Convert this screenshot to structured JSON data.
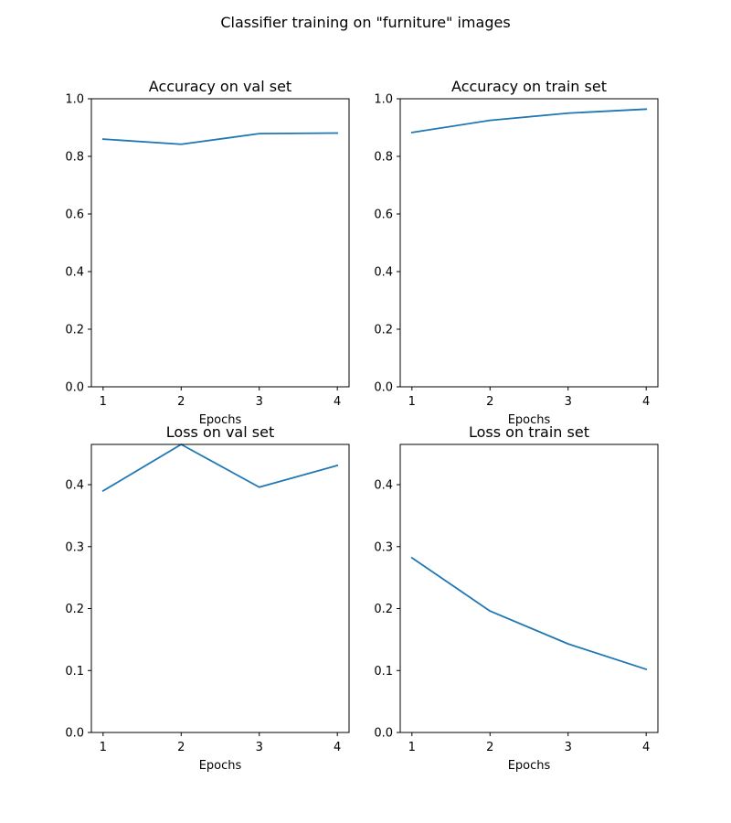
{
  "figure": {
    "title": "Classifier training on \"furniture\" images",
    "line_color": "#1f77b4"
  },
  "chart_data": [
    {
      "type": "line",
      "title": "Accuracy on val set",
      "xlabel": "Epochs",
      "ylabel": "",
      "x": [
        1,
        2,
        3,
        4
      ],
      "y": [
        0.86,
        0.842,
        0.879,
        0.881
      ],
      "xlim": [
        0.85,
        4.15
      ],
      "ylim": [
        0,
        1.0
      ],
      "xticks": [
        1,
        2,
        3,
        4
      ],
      "yticks": [
        0.0,
        0.2,
        0.4,
        0.6,
        0.8,
        1.0
      ],
      "ytick_labels": [
        "0.0",
        "0.2",
        "0.4",
        "0.6",
        "0.8",
        "1.0"
      ],
      "grid": false
    },
    {
      "type": "line",
      "title": "Accuracy on train set",
      "xlabel": "Epochs",
      "ylabel": "",
      "x": [
        1,
        2,
        3,
        4
      ],
      "y": [
        0.883,
        0.925,
        0.95,
        0.964
      ],
      "xlim": [
        0.85,
        4.15
      ],
      "ylim": [
        0,
        1.0
      ],
      "xticks": [
        1,
        2,
        3,
        4
      ],
      "yticks": [
        0.0,
        0.2,
        0.4,
        0.6,
        0.8,
        1.0
      ],
      "ytick_labels": [
        "0.0",
        "0.2",
        "0.4",
        "0.6",
        "0.8",
        "1.0"
      ],
      "grid": false
    },
    {
      "type": "line",
      "title": "Loss on val set",
      "xlabel": "Epochs",
      "ylabel": "",
      "x": [
        1,
        2,
        3,
        4
      ],
      "y": [
        0.39,
        0.465,
        0.396,
        0.431
      ],
      "xlim": [
        0.85,
        4.15
      ],
      "ylim": [
        0,
        0.465
      ],
      "xticks": [
        1,
        2,
        3,
        4
      ],
      "yticks": [
        0.0,
        0.1,
        0.2,
        0.3,
        0.4
      ],
      "ytick_labels": [
        "0.0",
        "0.1",
        "0.2",
        "0.3",
        "0.4"
      ],
      "grid": false
    },
    {
      "type": "line",
      "title": "Loss on train set",
      "xlabel": "Epochs",
      "ylabel": "",
      "x": [
        1,
        2,
        3,
        4
      ],
      "y": [
        0.282,
        0.196,
        0.143,
        0.102
      ],
      "xlim": [
        0.85,
        4.15
      ],
      "ylim": [
        0,
        0.465
      ],
      "xticks": [
        1,
        2,
        3,
        4
      ],
      "yticks": [
        0.0,
        0.1,
        0.2,
        0.3,
        0.4
      ],
      "ytick_labels": [
        "0.0",
        "0.1",
        "0.2",
        "0.3",
        "0.4"
      ],
      "grid": false
    }
  ]
}
